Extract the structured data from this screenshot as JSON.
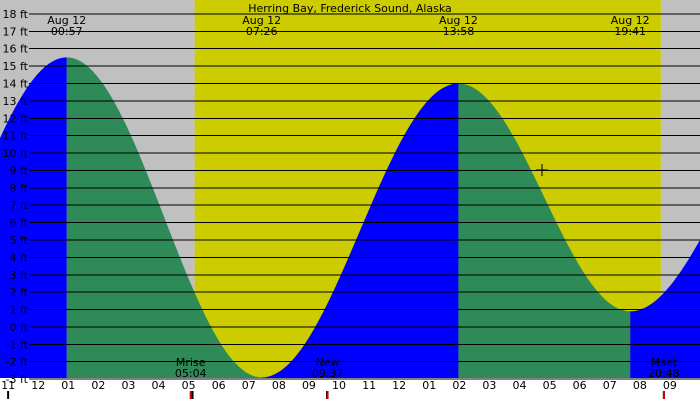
{
  "colors": {
    "night": "#c0c0c0",
    "day": "#cccc00",
    "rising": "#0000ff",
    "falling": "#2e8b57",
    "grid": "#000000",
    "text": "#000000",
    "moon_tick": "#cc0000"
  },
  "chart_data": {
    "type": "area",
    "title": "Herring Bay, Frederick Sound, Alaska",
    "ylim": [
      -4.2,
      18.8
    ],
    "y_ticks": [
      18,
      17,
      16,
      15,
      14,
      13,
      12,
      11,
      10,
      9,
      8,
      7,
      6,
      5,
      4,
      3,
      2,
      1,
      0,
      -1,
      -2,
      -3
    ],
    "y_unit": "ft",
    "x_range_hours": [
      -1.27,
      22.0
    ],
    "hour_ticks": [
      {
        "label": "11",
        "h": -1
      },
      {
        "label": "12",
        "h": 0
      },
      {
        "label": "01",
        "h": 1
      },
      {
        "label": "02",
        "h": 2
      },
      {
        "label": "03",
        "h": 3
      },
      {
        "label": "04",
        "h": 4
      },
      {
        "label": "05",
        "h": 5
      },
      {
        "label": "06",
        "h": 6
      },
      {
        "label": "07",
        "h": 7
      },
      {
        "label": "08",
        "h": 8
      },
      {
        "label": "09",
        "h": 9
      },
      {
        "label": "10",
        "h": 10
      },
      {
        "label": "11",
        "h": 11
      },
      {
        "label": "12",
        "h": 12
      },
      {
        "label": "01",
        "h": 13
      },
      {
        "label": "02",
        "h": 14
      },
      {
        "label": "03",
        "h": 15
      },
      {
        "label": "04",
        "h": 16
      },
      {
        "label": "05",
        "h": 17
      },
      {
        "label": "06",
        "h": 18
      },
      {
        "label": "07",
        "h": 19
      },
      {
        "label": "08",
        "h": 20
      },
      {
        "label": "09",
        "h": 21
      }
    ],
    "tides": [
      {
        "date": "Aug 12",
        "time": "00:57",
        "h": 0.95,
        "height_ft": 15.5,
        "type": "high"
      },
      {
        "date": "Aug 12",
        "time": "07:26",
        "h": 7.43,
        "height_ft": -2.9,
        "type": "low"
      },
      {
        "date": "Aug 12",
        "time": "13:58",
        "h": 13.97,
        "height_ft": 14.0,
        "type": "high"
      },
      {
        "date": "Aug 12",
        "time": "19:41",
        "h": 19.68,
        "height_ft": 0.9,
        "type": "low"
      }
    ],
    "tide_curve_edges": [
      {
        "h": -5.5,
        "height_ft": -2.0
      },
      {
        "h": 25.4,
        "height_ft": 12.5
      }
    ],
    "daylight_hours": [
      5.2,
      20.7
    ],
    "events": [
      {
        "label": "Mrise",
        "time": "05:04",
        "h": 5.07
      },
      {
        "label": "New",
        "time": "09:37",
        "h": 9.62
      },
      {
        "label": "Mset",
        "time": "20:48",
        "h": 20.8
      }
    ],
    "sun_ticks_hours": [
      -1.0,
      5.13,
      9.6,
      20.8
    ]
  }
}
